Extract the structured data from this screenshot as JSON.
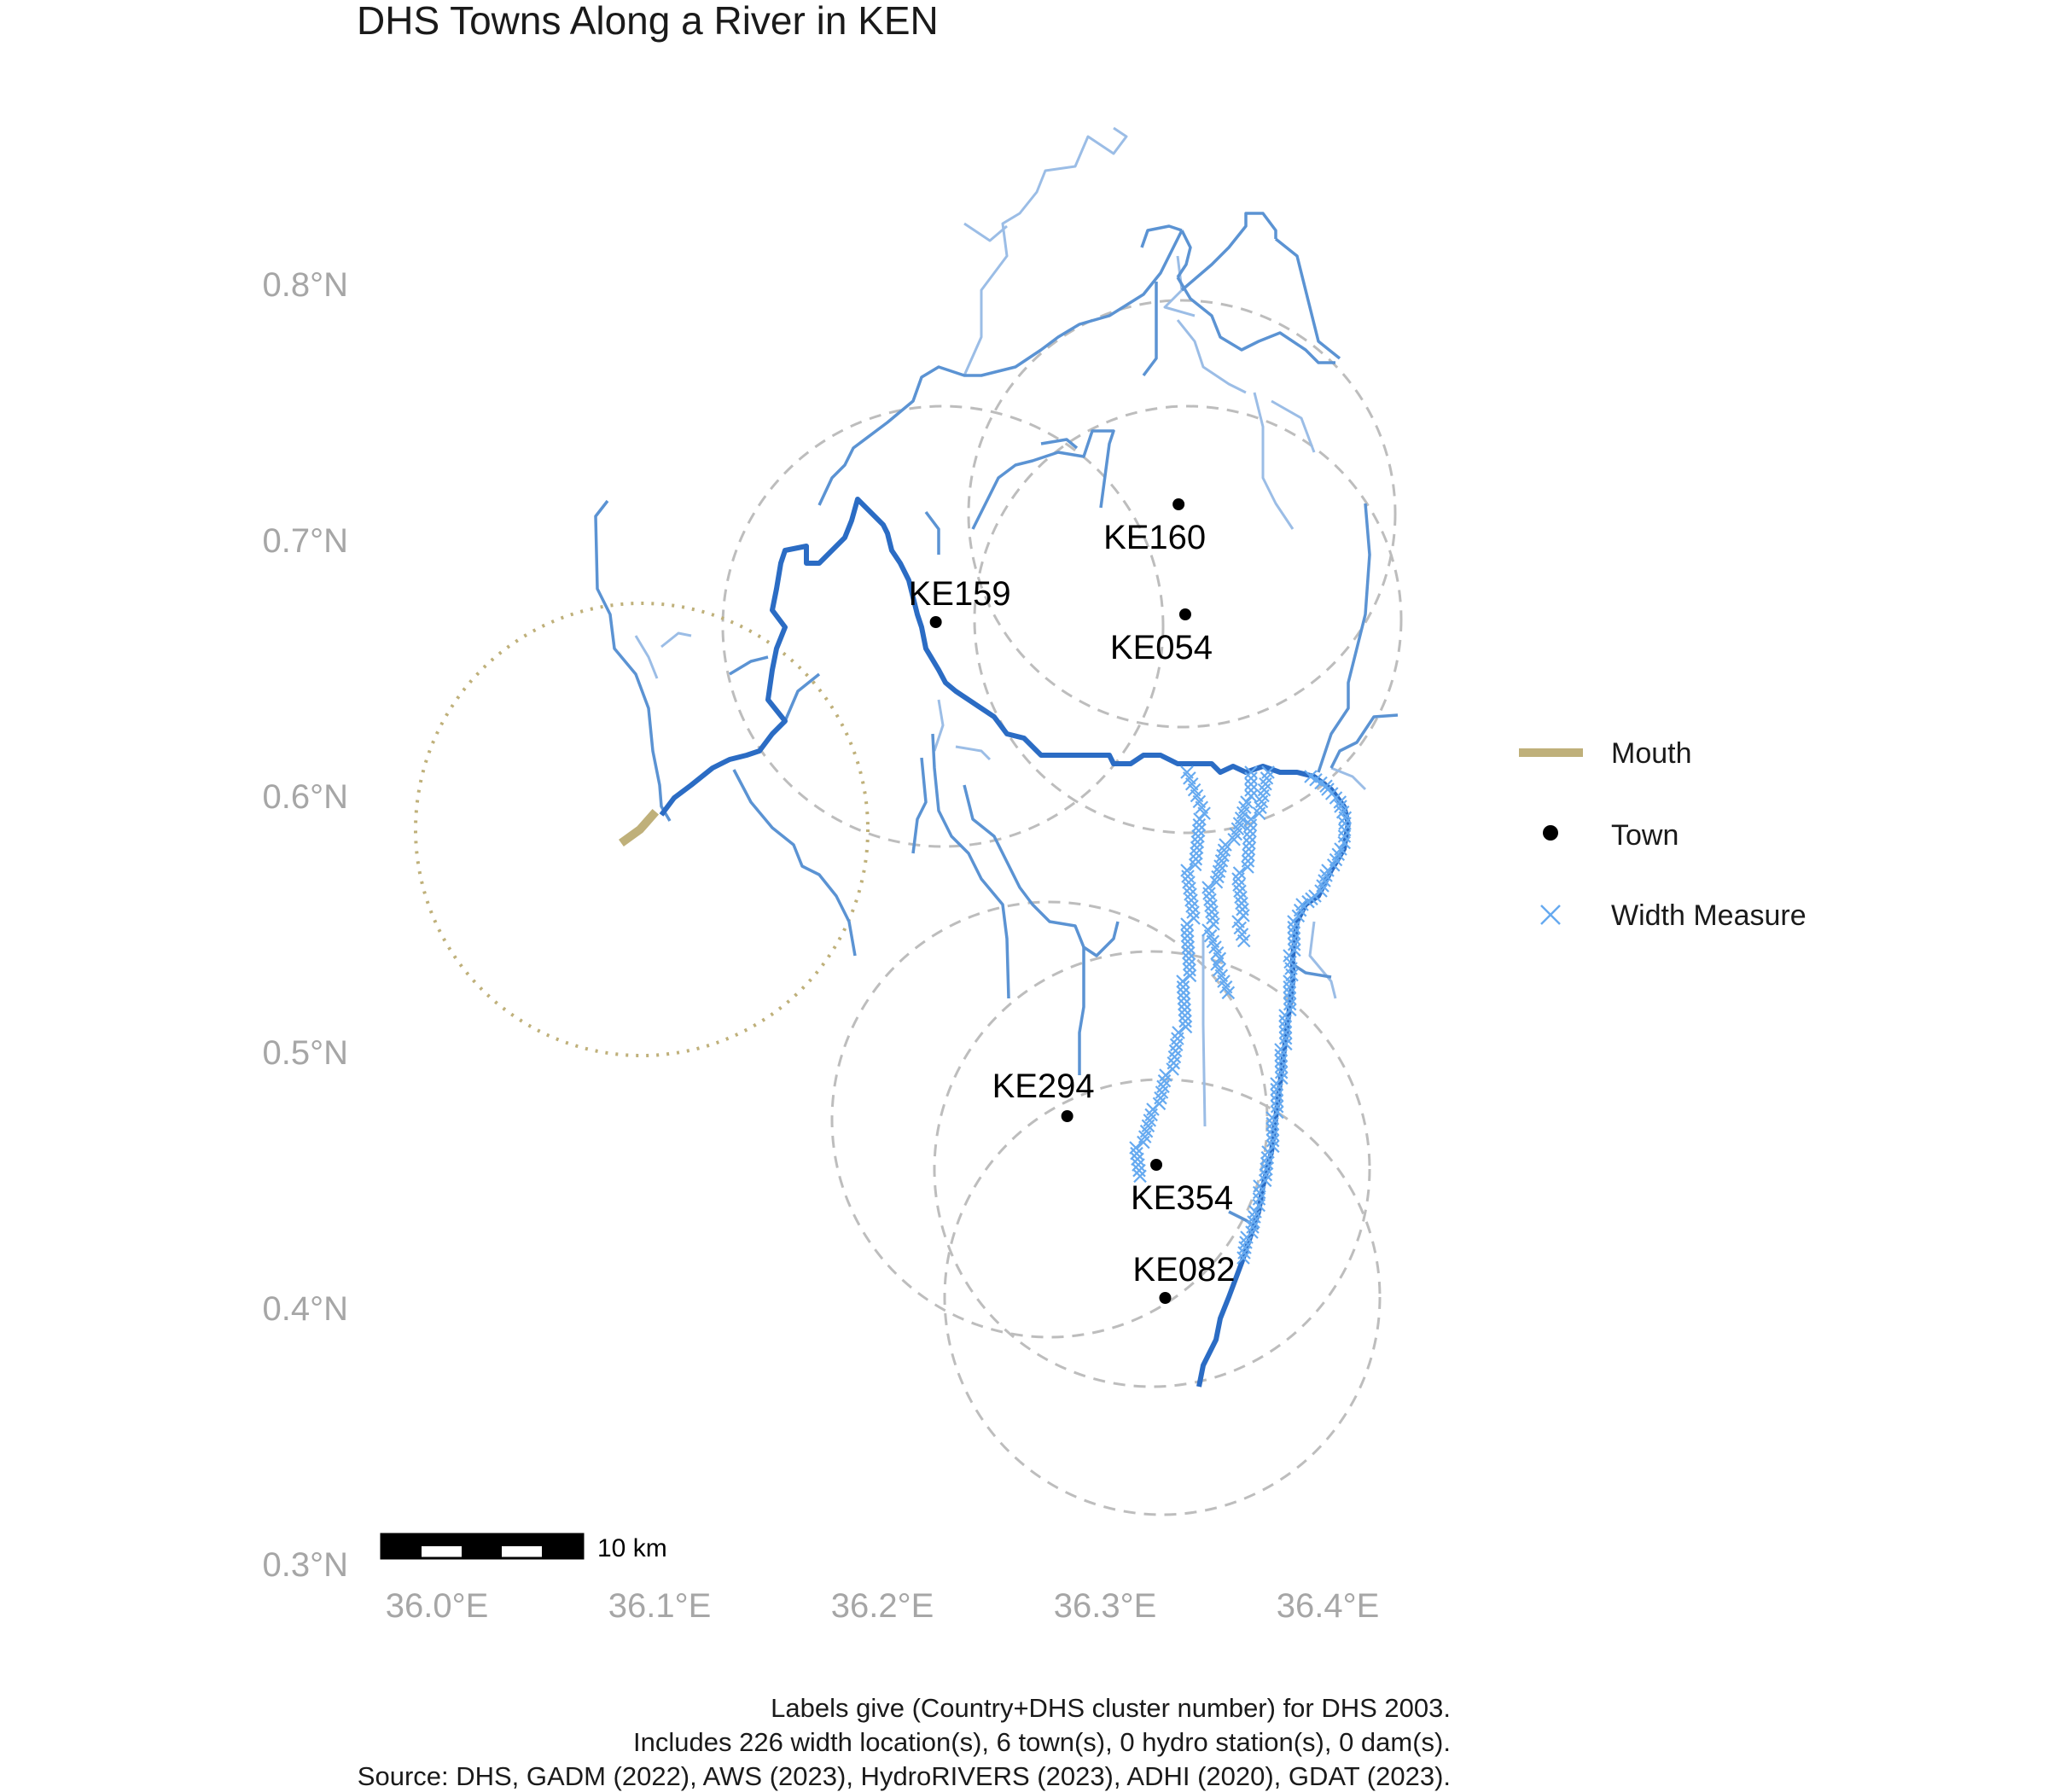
{
  "title": "DHS Towns Along a River in KEN",
  "colors": {
    "river_major": "#2b6cc4",
    "river_medium": "#5b93d3",
    "river_minor": "#9bbde6",
    "mouth": "#bfb07a",
    "buffer": "#bdbdbd",
    "town": "#000000",
    "width_measure": "#66aaf0",
    "tick": "#a6a6a6"
  },
  "axes": {
    "x_ticks": [
      {
        "value": 36.0,
        "label": "36.0°E"
      },
      {
        "value": 36.1,
        "label": "36.1°E"
      },
      {
        "value": 36.2,
        "label": "36.2°E"
      },
      {
        "value": 36.3,
        "label": "36.3°E"
      },
      {
        "value": 36.4,
        "label": "36.4°E"
      }
    ],
    "y_ticks": [
      {
        "value": 0.3,
        "label": "0.3°N"
      },
      {
        "value": 0.4,
        "label": "0.4°N"
      },
      {
        "value": 0.5,
        "label": "0.5°N"
      },
      {
        "value": 0.6,
        "label": "0.6°N"
      },
      {
        "value": 0.7,
        "label": "0.7°N"
      },
      {
        "value": 0.8,
        "label": "0.8°N"
      }
    ]
  },
  "towns": [
    {
      "id": "KE160",
      "label": "KE160",
      "lon": 36.333,
      "lat": 0.714
    },
    {
      "id": "KE159",
      "label": "KE159",
      "lon": 36.224,
      "lat": 0.668
    },
    {
      "id": "KE054",
      "label": "KE054",
      "lon": 36.336,
      "lat": 0.671
    },
    {
      "id": "KE294",
      "label": "KE294",
      "lon": 36.283,
      "lat": 0.475
    },
    {
      "id": "KE354",
      "label": "KE354",
      "lon": 36.323,
      "lat": 0.456
    },
    {
      "id": "KE082",
      "label": "KE082",
      "lon": 36.327,
      "lat": 0.404
    }
  ],
  "mouth": {
    "lon": 36.087,
    "lat": 0.586
  },
  "legend": {
    "mouth": "Mouth",
    "town": "Town",
    "width_measure": "Width Measure"
  },
  "scale_bar": {
    "label": "10 km"
  },
  "caption": [
    "Labels give (Country+DHS cluster number) for DHS 2003.",
    "Includes 226 width location(s), 6 town(s), 0 hydro station(s), 0 dam(s).",
    "Source: DHS, GADM (2022), AWS (2023), HydroRIVERS (2023), ADHI (2020), GDAT (2023)."
  ]
}
